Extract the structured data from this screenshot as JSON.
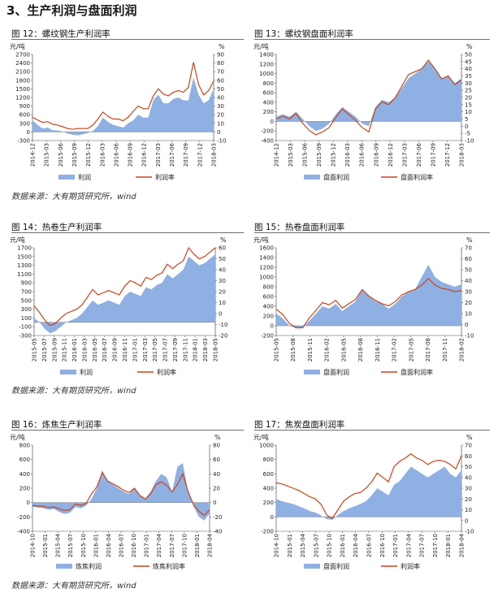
{
  "page": {
    "title": "3、生产利润与盘面利润",
    "source_top": "数据来源：大有期货研究所，wind",
    "source_mid": "数据来源：大有期货研究所，wind",
    "source_bottom": "数据来源：大有期货研究所，wind"
  },
  "colors": {
    "profit_area": "#8fb0e2",
    "rate_line": "#c8431c"
  },
  "chart_data": [
    {
      "id": "fig12",
      "type": "area",
      "title": "图 12：螺纹钢生产利润率",
      "ylabel_left": "元/吨",
      "ylabel_right": "%",
      "left_ticks": [
        -300,
        0,
        300,
        600,
        900,
        1200,
        1500,
        1800,
        2100,
        2400,
        2700
      ],
      "right_ticks": [
        -10,
        0,
        10,
        20,
        30,
        40,
        50,
        60,
        70,
        80,
        90
      ],
      "ylim_left": [
        -300,
        2700
      ],
      "ylim_right": [
        -10,
        90
      ],
      "x_ticks": [
        "2014-12",
        "2015-03",
        "2015-06",
        "2015-09",
        "2015-12",
        "2016-03",
        "2016-06",
        "2016-09",
        "2016-12",
        "2017-03",
        "2017-06",
        "2017-09",
        "2017-12",
        "2018-03"
      ],
      "series": [
        {
          "name": "利润",
          "kind": "area",
          "axis": "left",
          "values": [
            400,
            250,
            120,
            150,
            60,
            50,
            20,
            -60,
            -100,
            -120,
            -80,
            -40,
            30,
            200,
            500,
            350,
            250,
            200,
            150,
            300,
            400,
            600,
            500,
            500,
            1100,
            1300,
            1000,
            1000,
            1150,
            1200,
            1100,
            1100,
            1900,
            1300,
            1000,
            1100,
            1500
          ]
        },
        {
          "name": "利润率",
          "kind": "line",
          "axis": "right",
          "values": [
            17,
            14,
            11,
            12,
            9,
            8,
            6,
            4,
            3,
            4,
            4,
            4,
            8,
            15,
            23,
            18,
            15,
            15,
            13,
            17,
            24,
            30,
            27,
            27,
            42,
            50,
            44,
            42,
            46,
            48,
            46,
            52,
            81,
            55,
            43,
            48,
            59
          ]
        }
      ]
    },
    {
      "id": "fig13",
      "type": "area",
      "title": "图 13：螺纹钢盘面利润率",
      "ylabel_left": "元/吨",
      "ylabel_right": "%",
      "left_ticks": [
        -400,
        -200,
        0,
        200,
        400,
        600,
        800,
        1000,
        1200,
        1400
      ],
      "right_ticks": [
        -10,
        -5,
        0,
        5,
        10,
        15,
        20,
        25,
        30,
        35,
        40,
        45,
        50
      ],
      "ylim_left": [
        -400,
        1400
      ],
      "ylim_right": [
        -10,
        50
      ],
      "x_ticks": [
        "2014-12",
        "2015-03",
        "2015-06",
        "2015-09",
        "2015-12",
        "2016-03",
        "2016-06",
        "2016-09",
        "2016-12",
        "2017-03",
        "2017-06",
        "2017-09",
        "2017-12",
        "2018-03"
      ],
      "series": [
        {
          "name": "盘面利润",
          "kind": "area",
          "axis": "left",
          "values": [
            100,
            150,
            100,
            200,
            50,
            -100,
            -200,
            -150,
            -50,
            150,
            300,
            200,
            100,
            -50,
            -100,
            300,
            450,
            400,
            500,
            700,
            900,
            1000,
            1100,
            1250,
            1100,
            900,
            950,
            800,
            900
          ]
        },
        {
          "name": "盘面利润率",
          "kind": "line",
          "axis": "right",
          "values": [
            5,
            7,
            5,
            9,
            2,
            -3,
            -6,
            -4,
            -1,
            6,
            12,
            8,
            4,
            -1,
            -4,
            12,
            17,
            15,
            20,
            28,
            36,
            38,
            40,
            46,
            40,
            33,
            35,
            29,
            32
          ]
        }
      ]
    },
    {
      "id": "fig14",
      "type": "area",
      "title": "图 14：热卷生产利润率",
      "ylabel_left": "元/吨",
      "ylabel_right": "%",
      "left_ticks": [
        -300,
        -100,
        100,
        300,
        500,
        700,
        900,
        1100,
        1300,
        1500,
        1700
      ],
      "right_ticks": [
        -20,
        -10,
        0,
        10,
        20,
        30,
        40,
        50,
        60
      ],
      "ylim_left": [
        -300,
        1700
      ],
      "ylim_right": [
        -20,
        60
      ],
      "x_ticks": [
        "2015-05",
        "2015-07",
        "2015-09",
        "2015-11",
        "2016-01",
        "2016-03",
        "2016-05",
        "2016-07",
        "2016-09",
        "2016-11",
        "2017-01",
        "2017-03",
        "2017-05",
        "2017-07",
        "2017-09",
        "2017-11",
        "2018-01",
        "2018-03",
        "2018-05"
      ],
      "series": [
        {
          "name": "利润",
          "kind": "area",
          "axis": "left",
          "values": [
            100,
            0,
            -150,
            -250,
            -200,
            -100,
            0,
            50,
            100,
            200,
            350,
            500,
            400,
            450,
            500,
            450,
            400,
            600,
            700,
            650,
            600,
            800,
            750,
            850,
            900,
            1100,
            1000,
            1100,
            1200,
            1500,
            1400,
            1300,
            1350,
            1450,
            1550
          ]
        },
        {
          "name": "利润率",
          "kind": "line",
          "axis": "right",
          "values": [
            7,
            1,
            -6,
            -11,
            -9,
            -4,
            0,
            2,
            4,
            8,
            15,
            22,
            17,
            19,
            21,
            19,
            17,
            25,
            30,
            28,
            25,
            33,
            31,
            35,
            37,
            45,
            41,
            45,
            48,
            60,
            54,
            50,
            52,
            56,
            60
          ]
        }
      ]
    },
    {
      "id": "fig15",
      "type": "area",
      "title": "图 15：热卷盘面利润率",
      "ylabel_left": "元/吨",
      "ylabel_right": "%",
      "left_ticks": [
        -200,
        0,
        200,
        400,
        600,
        800,
        1000,
        1200,
        1400,
        1600
      ],
      "right_ticks": [
        -10,
        0,
        10,
        20,
        30,
        40,
        50,
        60,
        70
      ],
      "ylim_left": [
        -200,
        1600
      ],
      "ylim_right": [
        -10,
        70
      ],
      "x_ticks": [
        "2015-05",
        "2015-08",
        "2015-11",
        "2016-02",
        "2016-05",
        "2016-08",
        "2016-11",
        "2017-02",
        "2017-05",
        "2017-08",
        "2017-11",
        "2018-02"
      ],
      "series": [
        {
          "name": "盘面利润",
          "kind": "area",
          "axis": "left",
          "values": [
            250,
            150,
            0,
            -50,
            -50,
            100,
            250,
            400,
            350,
            450,
            300,
            400,
            500,
            750,
            600,
            500,
            450,
            350,
            450,
            600,
            700,
            750,
            1000,
            1250,
            1000,
            900,
            850,
            800,
            850
          ]
        },
        {
          "name": "盘面利润率",
          "kind": "line",
          "axis": "right",
          "values": [
            14,
            9,
            1,
            -3,
            -3,
            6,
            13,
            20,
            18,
            22,
            15,
            19,
            23,
            32,
            26,
            22,
            19,
            17,
            21,
            27,
            30,
            32,
            36,
            42,
            36,
            33,
            32,
            30,
            31
          ]
        }
      ]
    },
    {
      "id": "fig16",
      "type": "area",
      "title": "图 16：炼焦生产利润率",
      "ylabel_left": "元/吨",
      "ylabel_right": "%",
      "left_ticks": [
        -400,
        -200,
        0,
        200,
        400,
        600,
        800
      ],
      "right_ticks": [
        -40,
        -20,
        0,
        20,
        40,
        60,
        80
      ],
      "ylim_left": [
        -400,
        800
      ],
      "ylim_right": [
        -40,
        80
      ],
      "x_ticks": [
        "2014-10",
        "2015-01",
        "2015-04",
        "2015-07",
        "2015-10",
        "2016-01",
        "2016-04",
        "2016-07",
        "2016-10",
        "2017-01",
        "2017-04",
        "2017-07",
        "2017-10",
        "2018-01",
        "2018-04"
      ],
      "series": [
        {
          "name": "炼焦利润",
          "kind": "area",
          "axis": "left",
          "values": [
            -60,
            -70,
            -80,
            -100,
            -90,
            -130,
            -160,
            -140,
            -60,
            -80,
            -40,
            50,
            200,
            450,
            300,
            250,
            200,
            150,
            120,
            200,
            100,
            50,
            150,
            300,
            400,
            350,
            150,
            500,
            550,
            150,
            -50,
            -200,
            -250,
            -150
          ]
        },
        {
          "name": "炼焦利润率",
          "kind": "line",
          "axis": "right",
          "values": [
            -4,
            -5,
            -5,
            -7,
            -6,
            -9,
            -11,
            -10,
            -2,
            -4,
            -1,
            12,
            22,
            42,
            30,
            26,
            22,
            17,
            14,
            20,
            10,
            5,
            12,
            25,
            29,
            24,
            15,
            25,
            40,
            15,
            -3,
            -12,
            -18,
            -10
          ]
        }
      ]
    },
    {
      "id": "fig17",
      "type": "area",
      "title": "图 17：焦炭盘面利润率",
      "ylabel_left": "元/吨",
      "ylabel_right": "%",
      "left_ticks": [
        -200,
        0,
        200,
        400,
        600,
        800,
        1000
      ],
      "right_ticks": [
        -10,
        0,
        10,
        20,
        30,
        40,
        50,
        60,
        70
      ],
      "ylim_left": [
        -200,
        1000
      ],
      "ylim_right": [
        -10,
        70
      ],
      "x_ticks": [
        "2014-10",
        "2015-01",
        "2015-04",
        "2015-07",
        "2015-10",
        "2016-01",
        "2016-04",
        "2016-07",
        "2016-10",
        "2017-01",
        "2017-04",
        "2017-07",
        "2017-10",
        "2018-01",
        "2018-04"
      ],
      "series": [
        {
          "name": "盘面利润",
          "kind": "area",
          "axis": "left",
          "values": [
            250,
            220,
            200,
            180,
            150,
            120,
            80,
            60,
            20,
            -30,
            -40,
            30,
            80,
            120,
            150,
            180,
            220,
            300,
            400,
            350,
            300,
            450,
            500,
            600,
            700,
            650,
            600,
            550,
            600,
            650,
            700,
            600,
            550,
            650
          ]
        },
        {
          "name": "利润率",
          "kind": "line",
          "axis": "right",
          "values": [
            35,
            34,
            32,
            30,
            28,
            25,
            22,
            20,
            15,
            5,
            2,
            10,
            18,
            22,
            25,
            26,
            30,
            36,
            44,
            40,
            36,
            50,
            55,
            58,
            62,
            58,
            56,
            52,
            55,
            56,
            55,
            52,
            48,
            60
          ]
        }
      ]
    }
  ]
}
